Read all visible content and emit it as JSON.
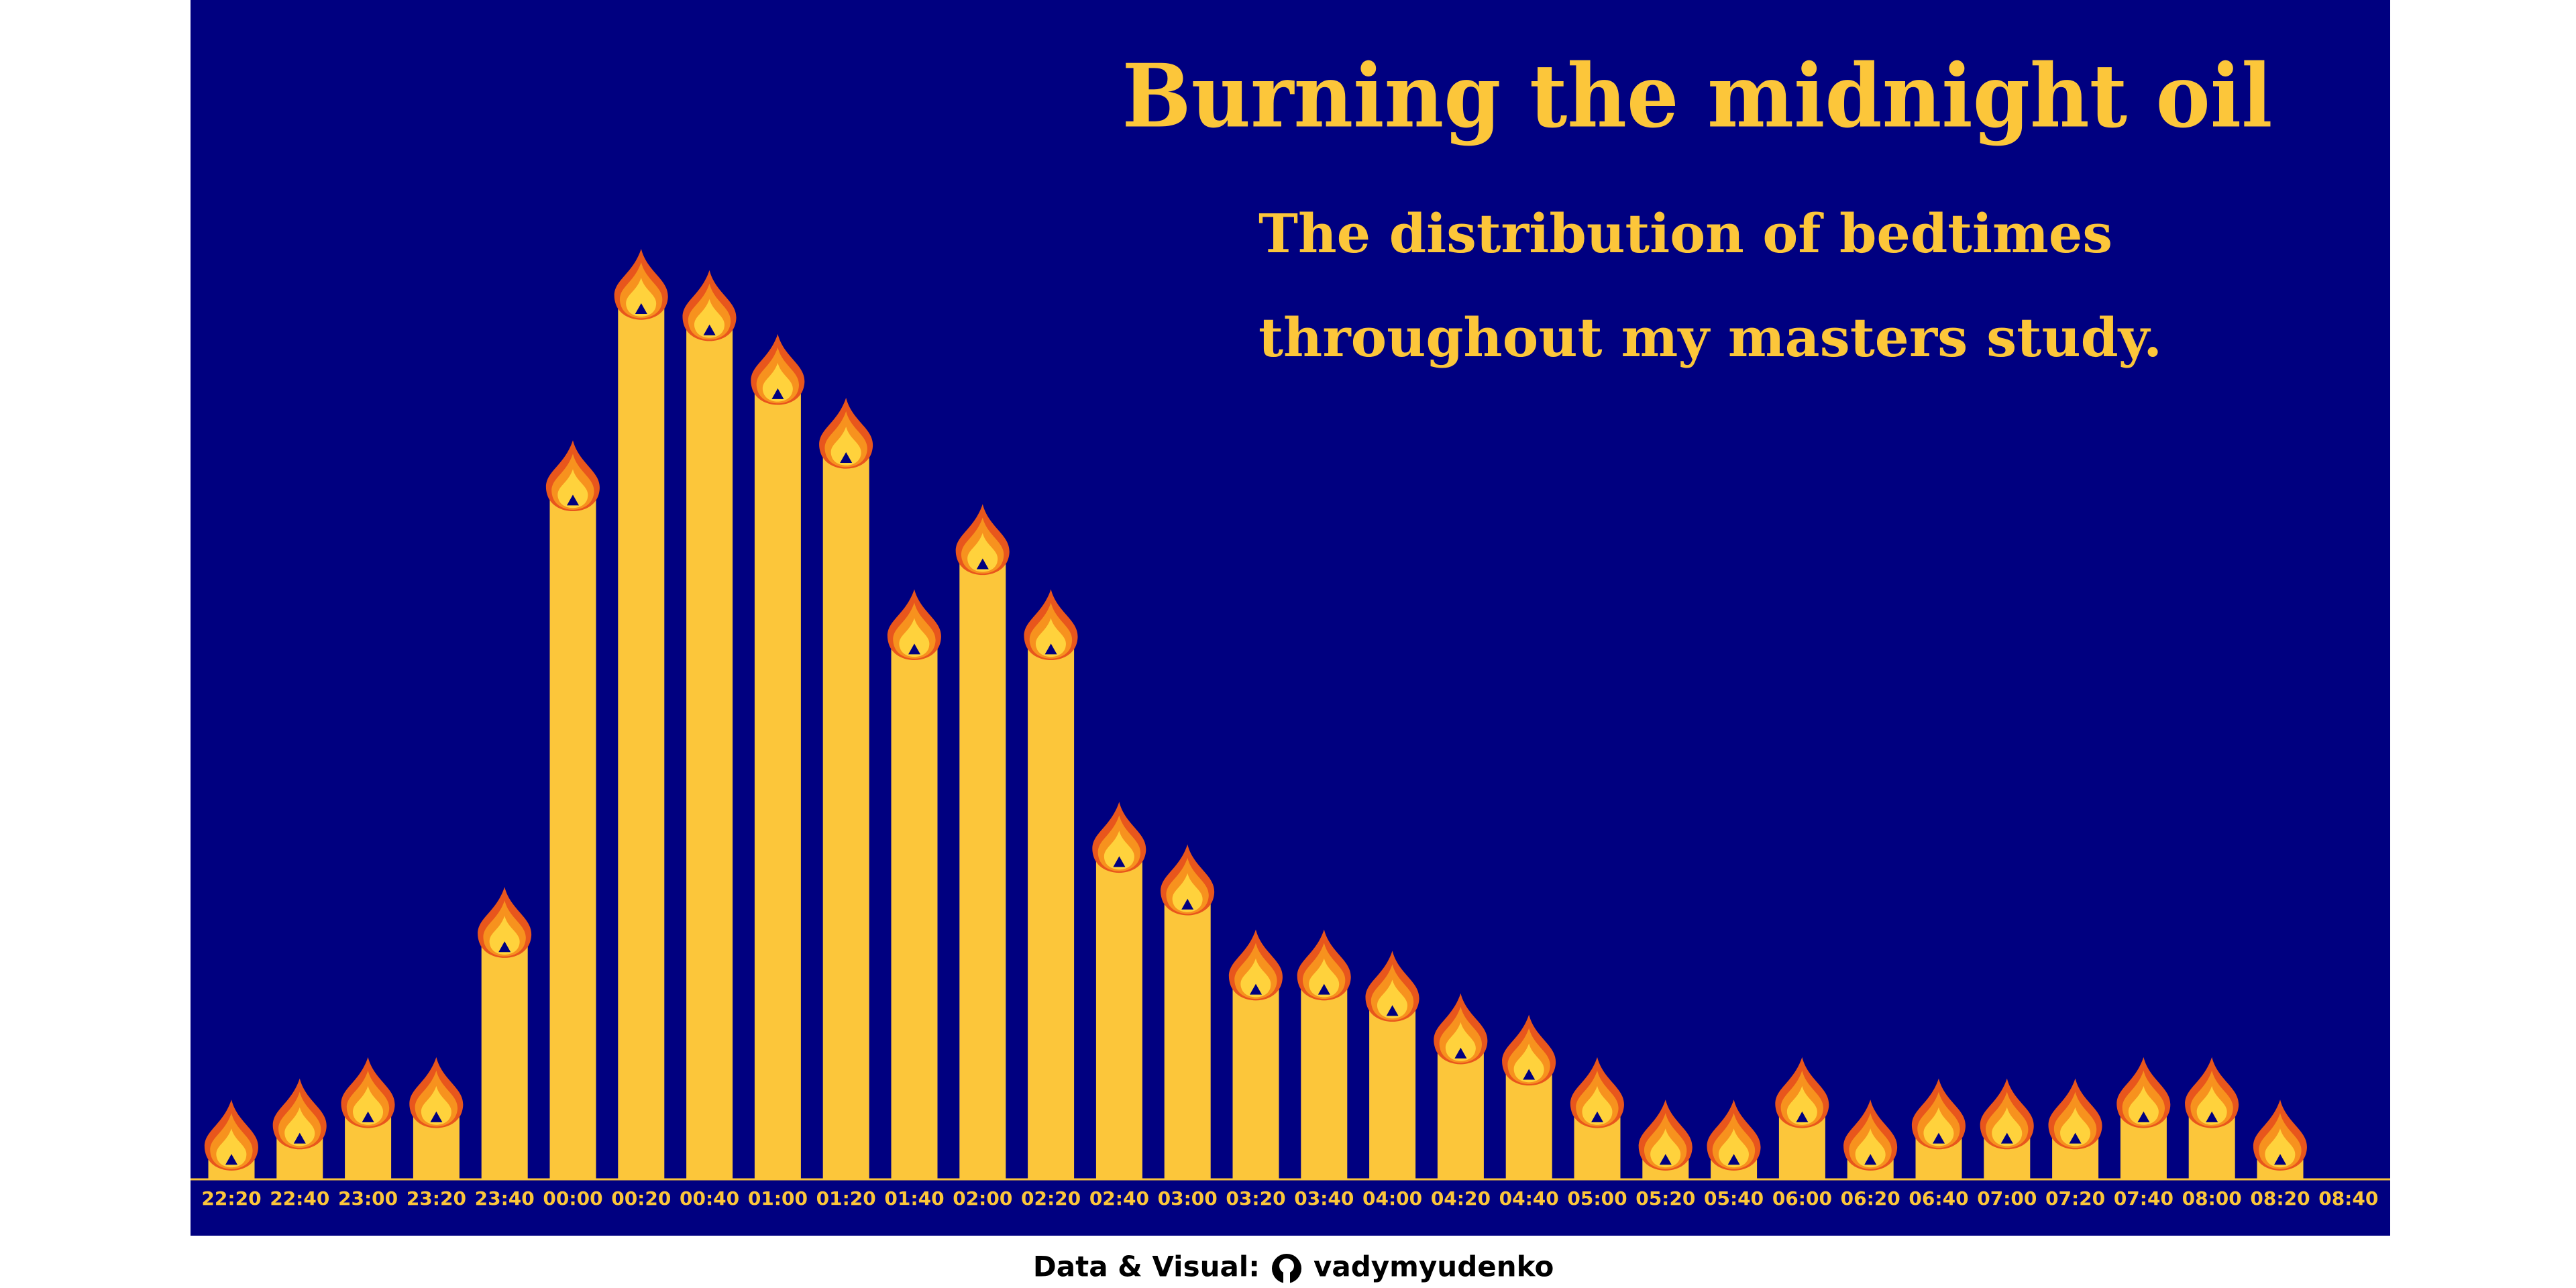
{
  "chart_data": {
    "type": "candle-bar",
    "title": "Burning the midnight oil",
    "subtitle": [
      "The distribution of bedtimes",
      "throughout my masters study."
    ],
    "footer": {
      "credit": "Data & Visual:",
      "author": "vadymyudenko"
    },
    "categories": [
      "22:20",
      "22:40",
      "23:00",
      "23:20",
      "23:40",
      "00:00",
      "00:20",
      "00:40",
      "01:00",
      "01:20",
      "01:40",
      "02:00",
      "02:20",
      "02:40",
      "03:00",
      "03:20",
      "03:40",
      "04:00",
      "04:20",
      "04:40",
      "05:00",
      "05:20",
      "05:40",
      "06:00",
      "06:20",
      "06:40",
      "07:00",
      "07:20",
      "07:40",
      "08:00",
      "08:20",
      "08:40"
    ],
    "values": [
      1,
      2,
      3,
      3,
      11,
      32,
      41,
      40,
      37,
      34,
      25,
      29,
      25,
      15,
      13,
      9,
      9,
      8,
      6,
      5,
      3,
      1,
      1,
      3,
      1,
      2,
      2,
      2,
      3,
      3,
      1,
      0
    ],
    "color": "#fcc63a",
    "background": "#000080"
  }
}
